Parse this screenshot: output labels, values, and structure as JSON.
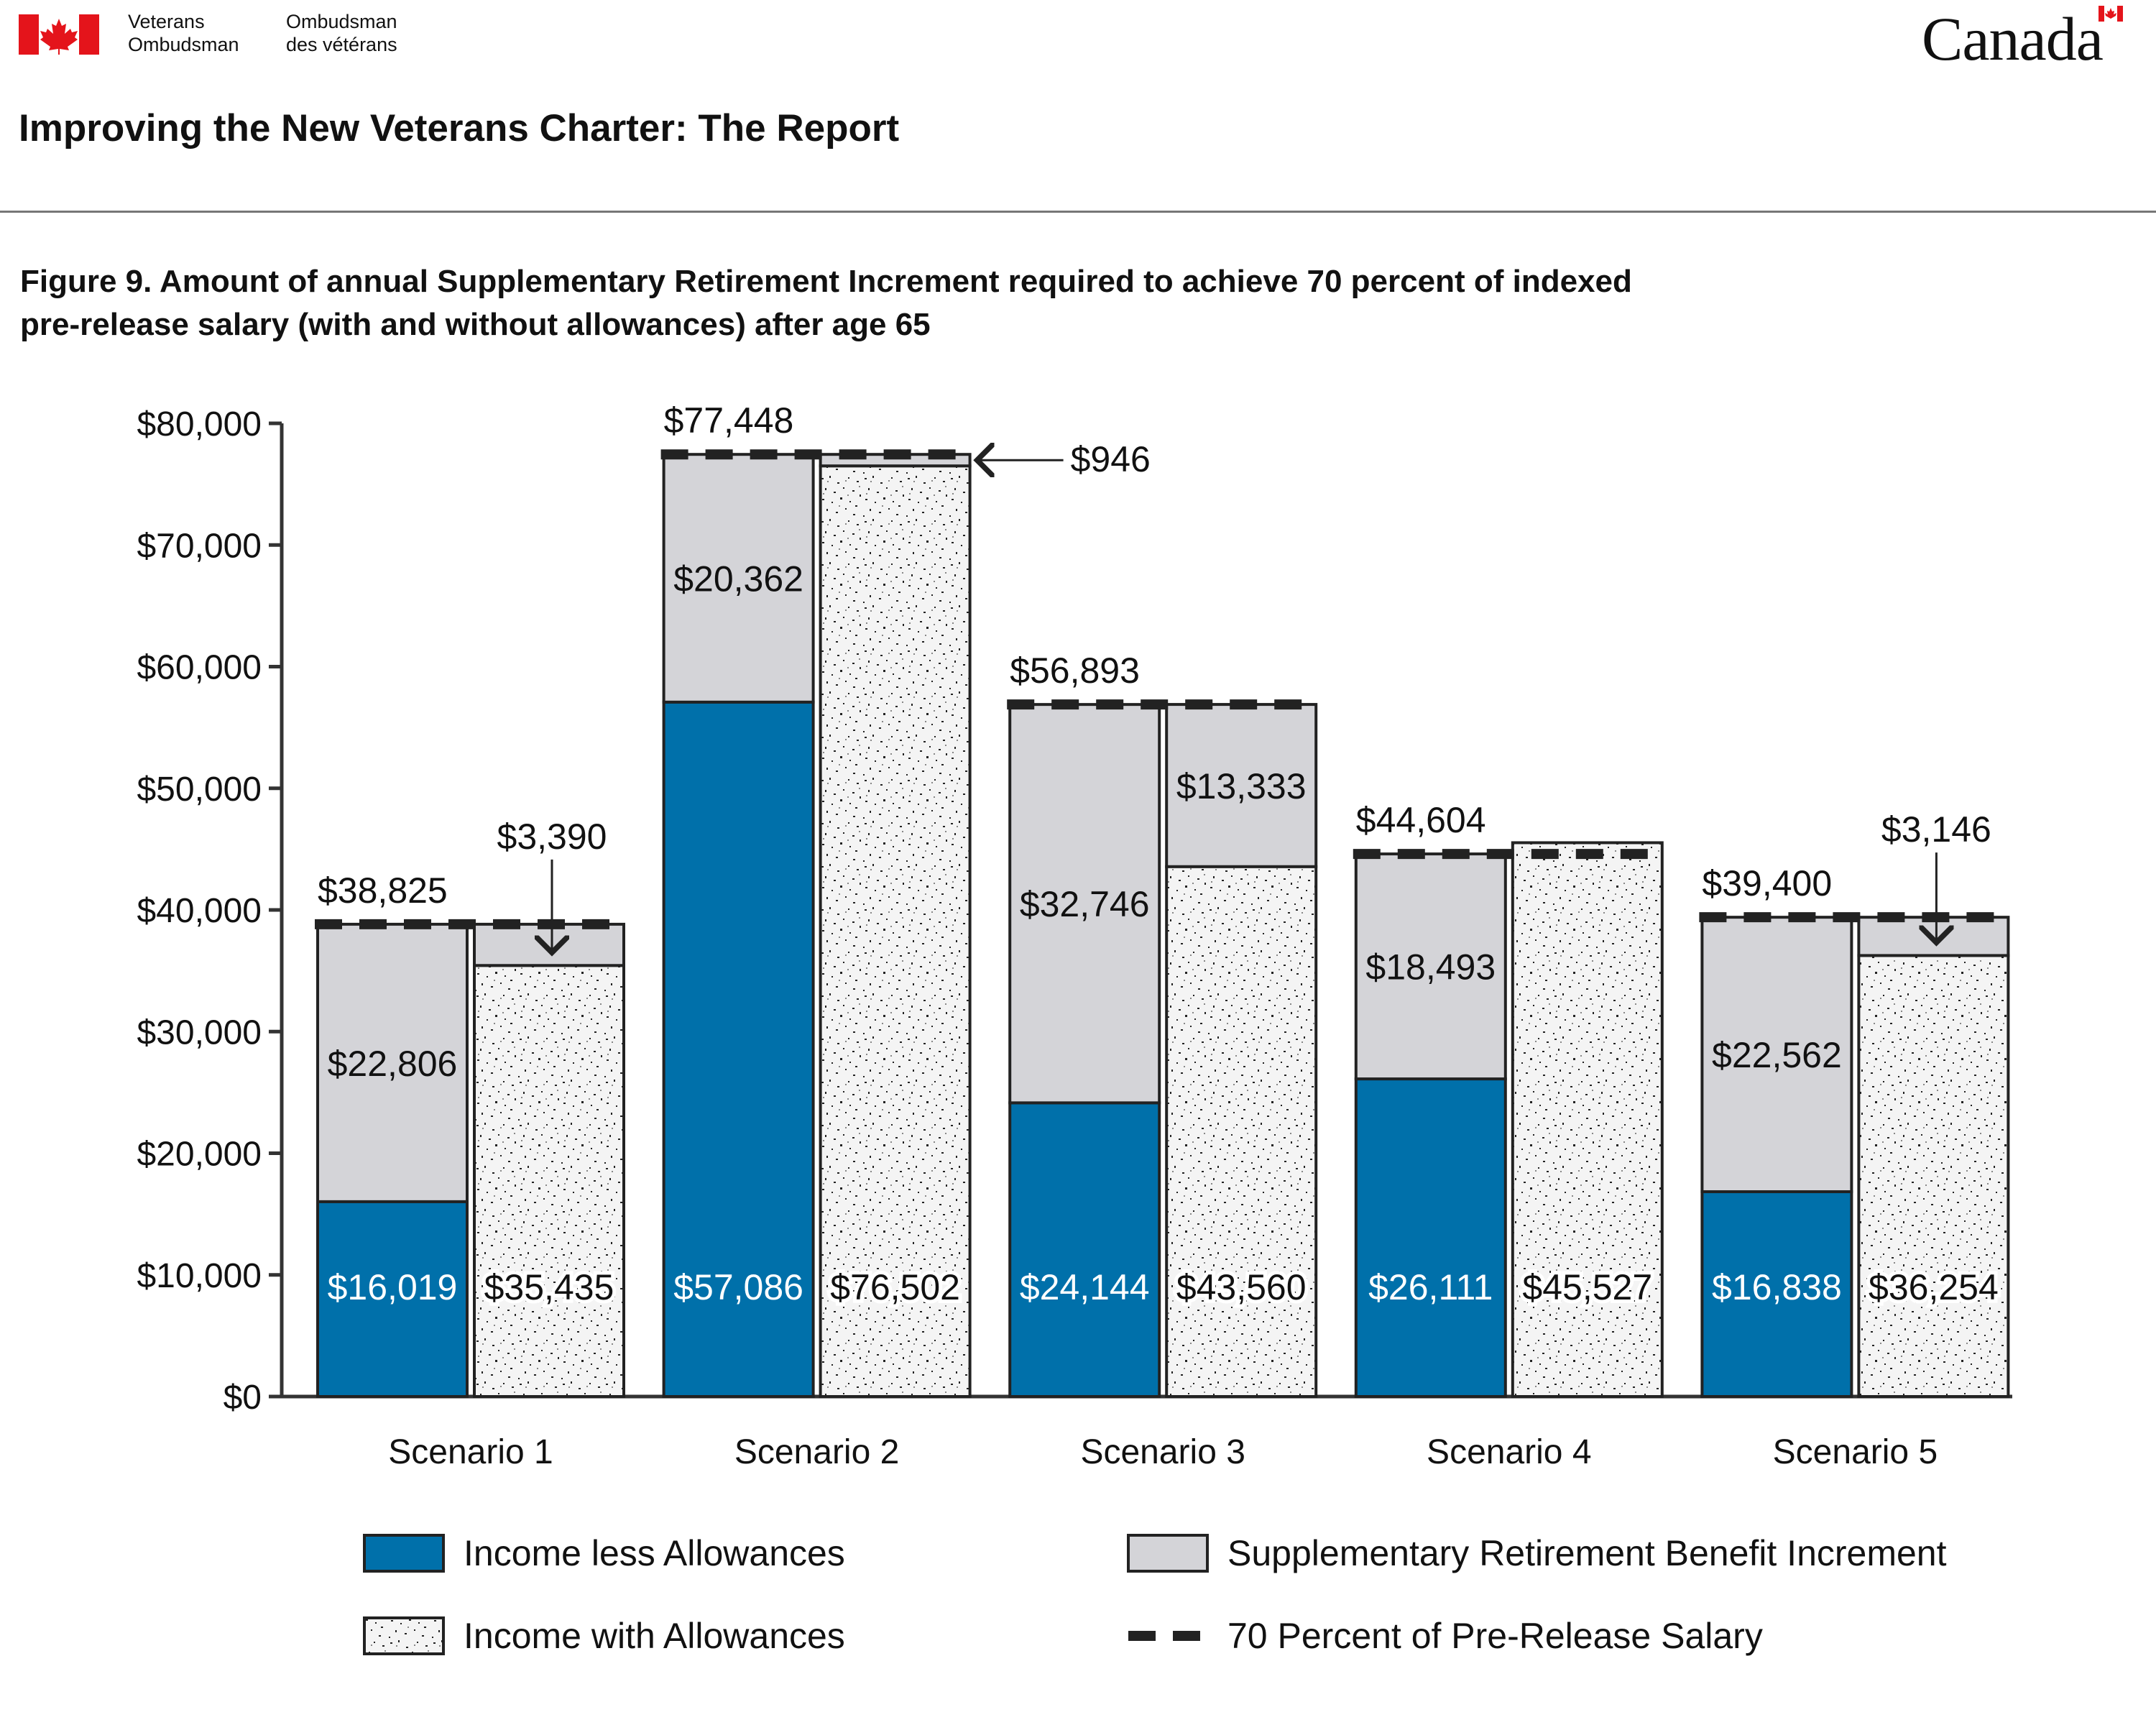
{
  "header": {
    "dept_en_line1": "Veterans",
    "dept_en_line2": "Ombudsman",
    "dept_fr_line1": "Ombudsman",
    "dept_fr_line2": "des vétérans",
    "wordmark": "Canada",
    "flag_color": "#e4141b"
  },
  "page_title": "Improving the New Veterans Charter: The Report",
  "figure_title_line1": "Figure 9. Amount of annual Supplementary Retirement Increment required to achieve 70 percent of indexed",
  "figure_title_line2": "pre-release salary (with and without allowances) after age 65",
  "colors": {
    "income_less": "#0070aa",
    "sri": "#d4d4d8",
    "income_with": "#f2f2f2",
    "target": "#222222"
  },
  "icons": [
    "maple-leaf-icon",
    "arrow-left-icon",
    "arrow-down-icon"
  ],
  "chart_data": {
    "type": "bar",
    "categories": [
      "Scenario 1",
      "Scenario 2",
      "Scenario 3",
      "Scenario 4",
      "Scenario 5"
    ],
    "y_ticks": [
      "$0",
      "$10,000",
      "$20,000",
      "$30,000",
      "$40,000",
      "$50,000",
      "$60,000",
      "$70,000",
      "$80,000"
    ],
    "ylim": [
      0,
      80000
    ],
    "grid": false,
    "legend_placement": "bottom",
    "series": [
      {
        "name": "Income less Allowances",
        "values": [
          16019,
          57086,
          24144,
          26111,
          16838
        ],
        "labels": [
          "$16,019",
          "$57,086",
          "$24,144",
          "$26,111",
          "$16,838"
        ]
      },
      {
        "name": "Supplementary Retirement Benefit Increment",
        "stack": "left",
        "values": [
          22806,
          20362,
          32746,
          18493,
          22562
        ],
        "labels": [
          "$22,806",
          "$20,362",
          "$32,746",
          "$18,493",
          "$22,562"
        ]
      },
      {
        "name": "Income with Allowances",
        "values": [
          35435,
          76502,
          43560,
          45527,
          36254
        ],
        "labels": [
          "$35,435",
          "$76,502",
          "$43,560",
          "$45,527",
          "$36,254"
        ]
      },
      {
        "name": "Supplementary Retirement Benefit Increment",
        "stack": "right",
        "values": [
          3390,
          946,
          13333,
          0,
          3146
        ],
        "labels": [
          "$3,390",
          "$946",
          "$13,333",
          "",
          "$3,146"
        ]
      },
      {
        "name": "70 Percent of Pre-Release Salary",
        "values": [
          38825,
          77448,
          56893,
          44604,
          39400
        ],
        "labels": [
          "$38,825",
          "$77,448",
          "$56,893",
          "$44,604",
          "$39,400"
        ]
      }
    ],
    "legend": [
      {
        "label": "Income less Allowances",
        "swatch": "solid-blue"
      },
      {
        "label": "Supplementary Retirement Benefit Increment",
        "swatch": "solid-grey"
      },
      {
        "label": "Income with Allowances",
        "swatch": "speckled"
      },
      {
        "label": "70 Percent of Pre-Release Salary",
        "swatch": "dashed-line"
      }
    ]
  }
}
